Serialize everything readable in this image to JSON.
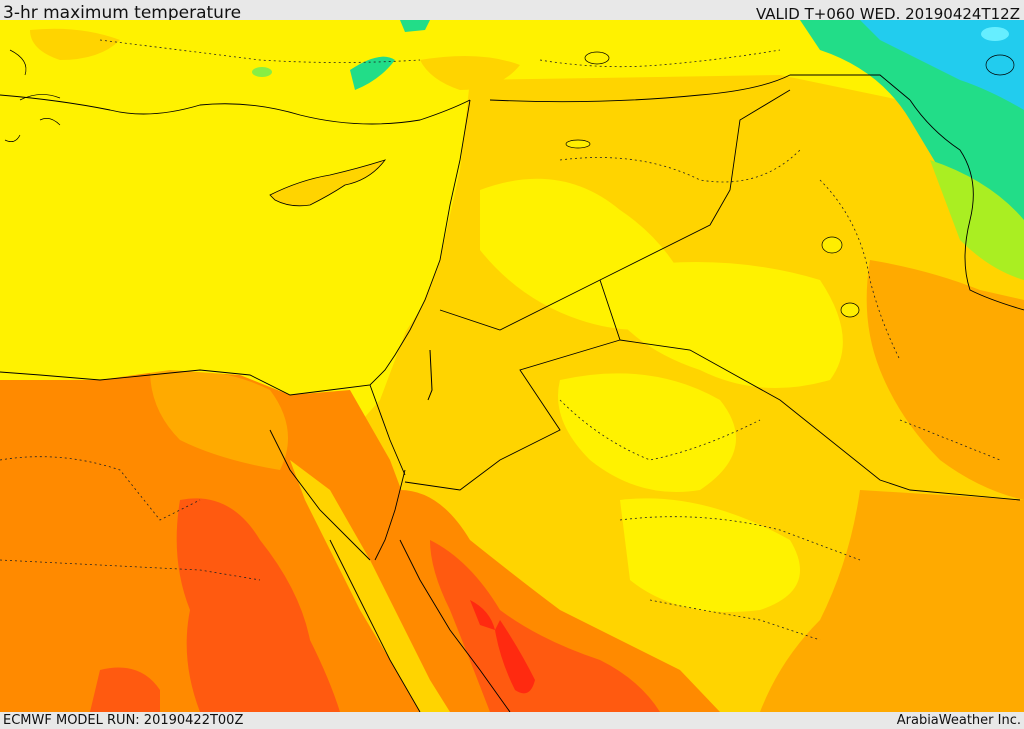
{
  "header": {
    "title": "3-hr maximum temperature",
    "valid": "VALID T+060 WED. 20190424T12Z"
  },
  "footer": {
    "model_run": "ECMWF MODEL RUN: 20190422T00Z",
    "credit": "ArabiaWeather Inc."
  },
  "palette": {
    "sea": "#ffee00",
    "yellow": "#fff200",
    "light_orange": "#ffd400",
    "orange": "#ffaa00",
    "dark_orange": "#ff8a00",
    "red_orange": "#ff5a10",
    "red": "#ff2a10",
    "green": "#22dd88",
    "cyan": "#22ccee",
    "lime": "#aaee22"
  }
}
